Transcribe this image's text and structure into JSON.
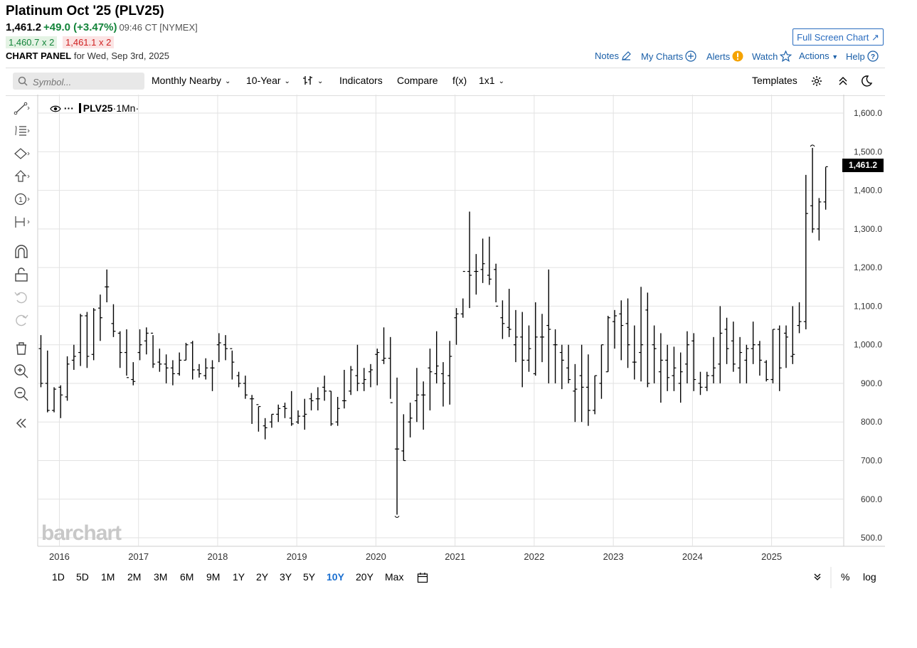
{
  "header": {
    "title": "Platinum Oct '25 (PLV25)",
    "last": "1,461.2",
    "change": "+49.0 (+3.47%)",
    "time": "09:46 CT [NYMEX]",
    "bid": "1,460.7 x 2",
    "ask": "1,461.1 x 2",
    "panel_label": "CHART PANEL",
    "panel_date": "for Wed, Sep 3rd, 2025",
    "fullscreen": "Full Screen Chart",
    "links": {
      "notes": "Notes",
      "mycharts": "My Charts",
      "alerts": "Alerts",
      "watch": "Watch",
      "actions": "Actions",
      "help": "Help"
    }
  },
  "toolbar": {
    "search_placeholder": "Symbol...",
    "period": "Monthly Nearby",
    "range": "10-Year",
    "indicators": "Indicators",
    "compare": "Compare",
    "fx": "f(x)",
    "layout": "1x1",
    "templates": "Templates"
  },
  "legend": {
    "symbol": "PLV25",
    "interval": "·1Mn·"
  },
  "watermark": "barchart",
  "price_flag": "1,461.2",
  "ranges": [
    "1D",
    "5D",
    "1M",
    "2M",
    "3M",
    "6M",
    "9M",
    "1Y",
    "2Y",
    "3Y",
    "5Y",
    "10Y",
    "20Y",
    "Max"
  ],
  "active_range": "10Y",
  "bottom_right": {
    "percent": "%",
    "log": "log"
  },
  "icons": [
    "trend-line-icon",
    "fib-icon",
    "shape-icon",
    "arrow-icon",
    "counter-icon",
    "measure-icon",
    "magnet-icon",
    "unlock-icon",
    "undo-icon",
    "redo-icon",
    "trash-icon",
    "zoom-in-icon",
    "zoom-out-icon",
    "collapse-icon"
  ],
  "chart_data": {
    "type": "ohlc-bar",
    "title": "Platinum Oct '25 (PLV25)",
    "interval": "Monthly",
    "ylim": [
      478,
      1648
    ],
    "y_ticks": [
      500,
      600,
      700,
      800,
      900,
      1000,
      1100,
      1200,
      1300,
      1400,
      1500,
      1600
    ],
    "x_ticks": [
      "2016",
      "2017",
      "2018",
      "2019",
      "2020",
      "2021",
      "2022",
      "2023",
      "2024",
      "2025"
    ],
    "x_range": [
      "2015-10",
      "2025-09"
    ],
    "grid": true,
    "bars": [
      [
        "2015-10",
        990,
        1025,
        890,
        900
      ],
      [
        "2015-11",
        900,
        985,
        825,
        830
      ],
      [
        "2015-12",
        830,
        890,
        825,
        885
      ],
      [
        "2016-01",
        890,
        895,
        810,
        870
      ],
      [
        "2016-02",
        865,
        970,
        855,
        950
      ],
      [
        "2016-03",
        960,
        1000,
        935,
        970
      ],
      [
        "2016-04",
        980,
        1080,
        945,
        1075
      ],
      [
        "2016-05",
        1075,
        1085,
        940,
        970
      ],
      [
        "2016-06",
        975,
        1095,
        960,
        1090
      ],
      [
        "2016-07",
        1095,
        1130,
        1010,
        1070
      ],
      [
        "2016-08",
        1150,
        1195,
        1110,
        1150
      ],
      [
        "2016-09",
        1055,
        1105,
        1020,
        1035
      ],
      [
        "2016-10",
        1030,
        1035,
        940,
        980
      ],
      [
        "2016-11",
        980,
        1040,
        920,
        915
      ],
      [
        "2016-12",
        910,
        955,
        895,
        905
      ],
      [
        "2017-01",
        980,
        1040,
        960,
        1000
      ],
      [
        "2017-02",
        1010,
        1045,
        975,
        1030
      ],
      [
        "2017-03",
        1030,
        1025,
        940,
        950
      ],
      [
        "2017-04",
        955,
        990,
        930,
        950
      ],
      [
        "2017-05",
        950,
        975,
        900,
        940
      ],
      [
        "2017-06",
        940,
        960,
        895,
        925
      ],
      [
        "2017-07",
        925,
        980,
        920,
        960
      ],
      [
        "2017-08",
        960,
        1005,
        960,
        1000
      ],
      [
        "2017-09",
        1005,
        1010,
        910,
        935
      ],
      [
        "2017-10",
        935,
        950,
        915,
        925
      ],
      [
        "2017-11",
        920,
        965,
        910,
        940
      ],
      [
        "2017-12",
        940,
        960,
        880,
        940
      ],
      [
        "2018-01",
        1000,
        1030,
        955,
        1005
      ],
      [
        "2018-02",
        1000,
        1025,
        960,
        990
      ],
      [
        "2018-03",
        990,
        985,
        910,
        955
      ],
      [
        "2018-04",
        920,
        930,
        890,
        900
      ],
      [
        "2018-05",
        900,
        920,
        860,
        870
      ],
      [
        "2018-06",
        860,
        870,
        795,
        860
      ],
      [
        "2018-07",
        845,
        840,
        775,
        840
      ],
      [
        "2018-08",
        790,
        810,
        755,
        785
      ],
      [
        "2018-09",
        800,
        820,
        785,
        820
      ],
      [
        "2018-10",
        820,
        845,
        800,
        835
      ],
      [
        "2018-11",
        840,
        850,
        810,
        835
      ],
      [
        "2018-12",
        810,
        880,
        790,
        795
      ],
      [
        "2019-01",
        800,
        830,
        795,
        815
      ],
      [
        "2019-02",
        815,
        860,
        780,
        820
      ],
      [
        "2019-03",
        860,
        875,
        830,
        855
      ],
      [
        "2019-04",
        860,
        890,
        830,
        860
      ],
      [
        "2019-05",
        890,
        920,
        855,
        880
      ],
      [
        "2019-06",
        880,
        880,
        790,
        795
      ],
      [
        "2019-07",
        800,
        865,
        790,
        835
      ],
      [
        "2019-08",
        855,
        935,
        835,
        855
      ],
      [
        "2019-09",
        880,
        945,
        870,
        935
      ],
      [
        "2019-10",
        920,
        1000,
        880,
        900
      ],
      [
        "2019-11",
        900,
        940,
        880,
        910
      ],
      [
        "2019-12",
        930,
        950,
        890,
        935
      ],
      [
        "2020-01",
        975,
        990,
        895,
        980
      ],
      [
        "2020-02",
        960,
        1045,
        950,
        965
      ],
      [
        "2020-03",
        965,
        1020,
        860,
        850
      ],
      [
        "2020-04",
        730,
        915,
        560,
        730
      ],
      [
        "2020-05",
        725,
        820,
        700,
        700
      ],
      [
        "2020-06",
        800,
        850,
        760,
        810
      ],
      [
        "2020-07",
        855,
        940,
        800,
        870
      ],
      [
        "2020-08",
        870,
        905,
        780,
        870
      ],
      [
        "2020-09",
        940,
        990,
        830,
        930
      ],
      [
        "2020-10",
        925,
        1035,
        900,
        945
      ],
      [
        "2020-11",
        925,
        955,
        840,
        900
      ],
      [
        "2020-12",
        920,
        1010,
        845,
        970
      ],
      [
        "2021-01",
        1070,
        1095,
        1000,
        1080
      ],
      [
        "2021-02",
        1080,
        1120,
        1070,
        1190
      ],
      [
        "2021-03",
        1190,
        1345,
        1095,
        1180
      ],
      [
        "2021-04",
        1190,
        1235,
        1130,
        1190
      ],
      [
        "2021-05",
        1195,
        1275,
        1160,
        1210
      ],
      [
        "2021-06",
        1180,
        1280,
        1155,
        1170
      ],
      [
        "2021-07",
        1195,
        1210,
        1110,
        1100
      ],
      [
        "2021-08",
        1070,
        1115,
        1015,
        1055
      ],
      [
        "2021-09",
        1045,
        1145,
        1020,
        1040
      ],
      [
        "2021-10",
        1000,
        1090,
        955,
        1020
      ],
      [
        "2021-11",
        1020,
        1085,
        890,
        960
      ],
      [
        "2021-12",
        960,
        1050,
        930,
        990
      ],
      [
        "2022-01",
        925,
        1110,
        920,
        1020
      ],
      [
        "2022-02",
        1020,
        1080,
        955,
        1020
      ],
      [
        "2022-03",
        1050,
        1195,
        900,
        1040
      ],
      [
        "2022-04",
        1000,
        1040,
        900,
        1000
      ],
      [
        "2022-05",
        980,
        1000,
        885,
        960
      ],
      [
        "2022-06",
        940,
        1000,
        900,
        910
      ],
      [
        "2022-07",
        880,
        950,
        800,
        885
      ],
      [
        "2022-08",
        920,
        1000,
        800,
        890
      ],
      [
        "2022-09",
        890,
        975,
        790,
        830
      ],
      [
        "2022-10",
        830,
        920,
        820,
        920
      ],
      [
        "2022-11",
        900,
        1000,
        860,
        1000
      ],
      [
        "2022-12",
        930,
        1075,
        930,
        1070
      ],
      [
        "2023-01",
        1060,
        1090,
        990,
        1075
      ],
      [
        "2023-02",
        1080,
        1115,
        960,
        1050
      ],
      [
        "2023-03",
        1055,
        1120,
        940,
        1000
      ],
      [
        "2023-04",
        955,
        1050,
        910,
        955
      ],
      [
        "2023-05",
        980,
        1150,
        905,
        1000
      ],
      [
        "2023-06",
        1090,
        1135,
        890,
        900
      ],
      [
        "2023-07",
        1000,
        1050,
        900,
        990
      ],
      [
        "2023-08",
        930,
        1030,
        850,
        960
      ],
      [
        "2023-09",
        960,
        1000,
        880,
        915
      ],
      [
        "2023-10",
        920,
        995,
        880,
        940
      ],
      [
        "2023-11",
        900,
        980,
        850,
        930
      ],
      [
        "2023-12",
        950,
        1035,
        900,
        1000
      ],
      [
        "2024-01",
        1010,
        1030,
        880,
        910
      ],
      [
        "2024-02",
        900,
        930,
        870,
        890
      ],
      [
        "2024-03",
        890,
        930,
        880,
        920
      ],
      [
        "2024-04",
        920,
        1020,
        900,
        940
      ],
      [
        "2024-05",
        950,
        1100,
        900,
        1030
      ],
      [
        "2024-06",
        1040,
        1070,
        950,
        990
      ],
      [
        "2024-07",
        1010,
        1060,
        930,
        950
      ],
      [
        "2024-08",
        940,
        1020,
        900,
        980
      ],
      [
        "2024-09",
        960,
        1000,
        900,
        990
      ],
      [
        "2024-10",
        990,
        1060,
        950,
        1000
      ],
      [
        "2024-11",
        1000,
        1010,
        920,
        960
      ],
      [
        "2024-12",
        955,
        960,
        905,
        910
      ],
      [
        "2025-01",
        910,
        1040,
        900,
        1040
      ],
      [
        "2025-02",
        1040,
        1050,
        880,
        940
      ],
      [
        "2025-03",
        1030,
        1050,
        940,
        1020
      ],
      [
        "2025-04",
        970,
        1100,
        950,
        975
      ],
      [
        "2025-05",
        1050,
        1110,
        1030,
        1060
      ],
      [
        "2025-06",
        1060,
        1440,
        1040,
        1340
      ],
      [
        "2025-07",
        1360,
        1510,
        1290,
        1300
      ],
      [
        "2025-08",
        1300,
        1380,
        1270,
        1370
      ],
      [
        "2025-09",
        1370,
        1460,
        1350,
        1461.2
      ]
    ]
  }
}
